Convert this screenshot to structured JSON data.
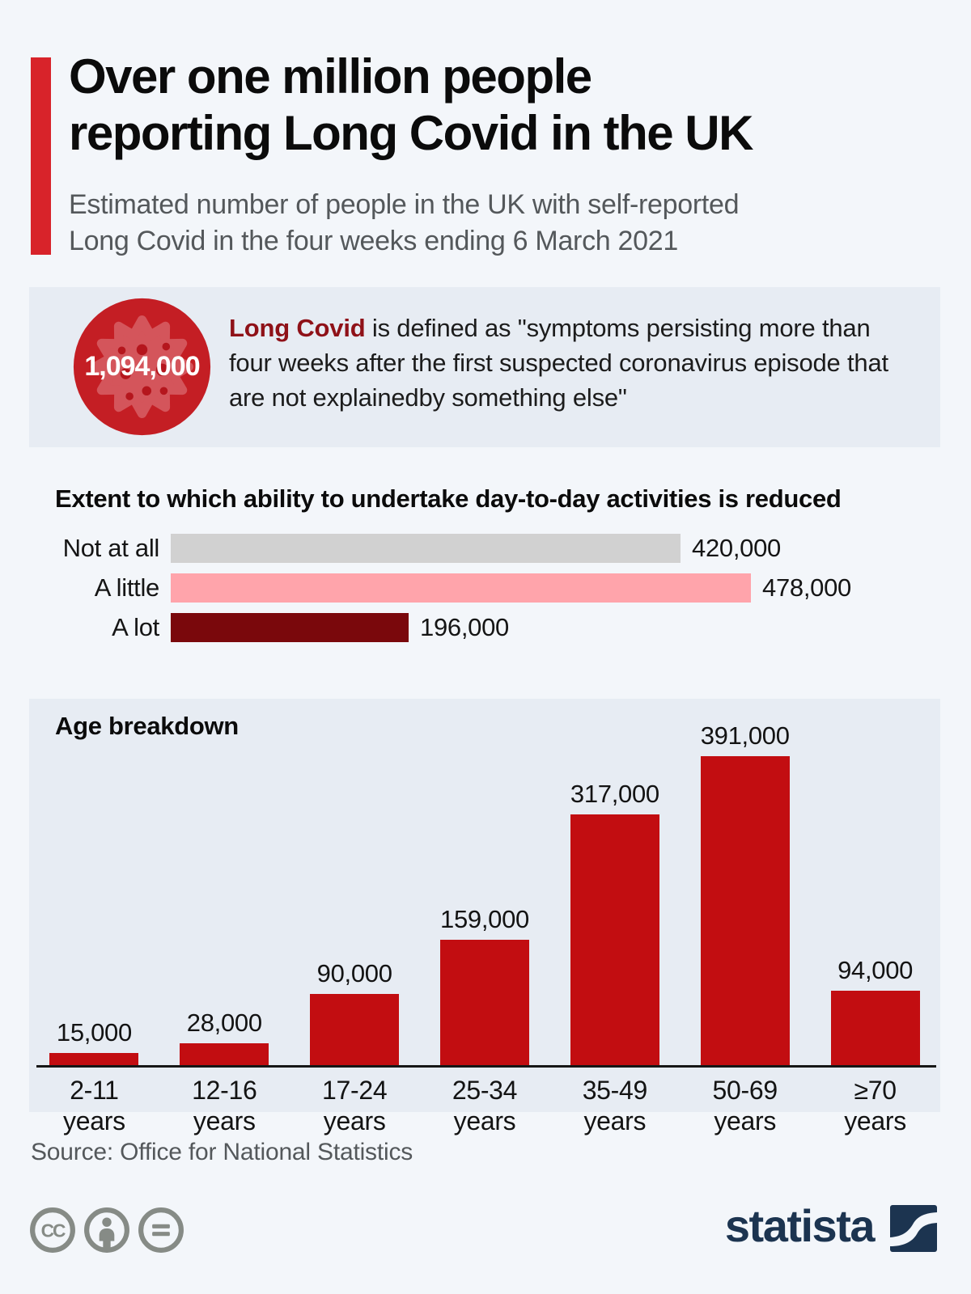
{
  "header": {
    "title_lines": [
      "Over one million people",
      "reporting Long Covid in the UK"
    ],
    "subtitle_lines": [
      "Estimated number of people in the UK with self-reported",
      "Long Covid in the four weeks ending 6 March 2021"
    ]
  },
  "highlight": {
    "value": "1,094,000",
    "term": "Long Covid",
    "definition_rest": " is defined as \"symptoms persisting more than four weeks after the first suspected coronavirus episode that are not explainedby something else\""
  },
  "chart_data": [
    {
      "type": "bar",
      "orientation": "horizontal",
      "title": "Extent to which ability to undertake day-to-day activities is reduced",
      "categories": [
        "Not at all",
        "A little",
        "A lot"
      ],
      "values": [
        420000,
        478000,
        196000
      ],
      "value_labels": [
        "420,000",
        "478,000",
        "196,000"
      ],
      "bar_colors": [
        "#d1d1d1",
        "#ffa4ab",
        "#7a080c"
      ],
      "xlim": [
        0,
        478000
      ],
      "grid": false,
      "legend": "none"
    },
    {
      "type": "bar",
      "orientation": "vertical",
      "title": "Age breakdown",
      "categories": [
        "2-11 years",
        "12-16 years",
        "17-24 years",
        "25-34 years",
        "35-49 years",
        "50-69 years",
        "≥70 years"
      ],
      "values": [
        15000,
        28000,
        90000,
        159000,
        317000,
        391000,
        94000
      ],
      "value_labels": [
        "15,000",
        "28,000",
        "90,000",
        "159,000",
        "317,000",
        "391,000",
        "94,000"
      ],
      "bar_color": "#c20d11",
      "ylim": [
        0,
        391000
      ],
      "grid": false,
      "legend": "none"
    }
  ],
  "footer": {
    "source": "Source: Office for National Statistics",
    "brand_name": "statista",
    "license_icons": [
      "cc-icon",
      "attribution-icon",
      "no-derivatives-icon"
    ]
  },
  "colors": {
    "page_background": "#f3f6fa",
    "panel_background": "#e7ecf3",
    "accent_red": "#d8232a",
    "bar_red": "#c20d11",
    "bar_pink": "#ffa4ab",
    "bar_maroon": "#7a080c",
    "bar_gray": "#d1d1d1",
    "term_maroon": "#8f1118",
    "brand_navy": "#1c3450",
    "virus_circle_red": "#c41e24",
    "virus_blob_red": "#d4555b",
    "license_gray": "#868b86"
  }
}
